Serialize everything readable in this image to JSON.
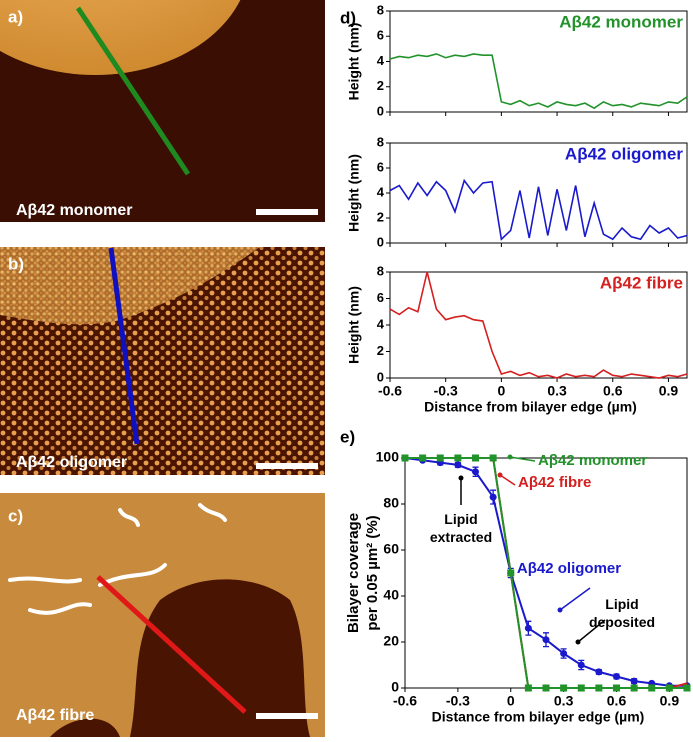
{
  "panels": [
    {
      "label": "a)",
      "caption": "Aβ42 monomer"
    },
    {
      "label": "b)",
      "caption": "Aβ42 oligomer"
    },
    {
      "label": "c)",
      "caption": "Aβ42 fibre"
    }
  ],
  "chart_data": [
    {
      "type": "line",
      "label": "d)",
      "title": "Aβ42 monomer",
      "ylabel": "Height (nm)",
      "x": [
        -0.6,
        -0.55,
        -0.5,
        -0.45,
        -0.4,
        -0.35,
        -0.3,
        -0.25,
        -0.2,
        -0.15,
        -0.1,
        -0.05,
        0,
        0.05,
        0.1,
        0.15,
        0.2,
        0.25,
        0.3,
        0.35,
        0.4,
        0.45,
        0.5,
        0.55,
        0.6,
        0.65,
        0.7,
        0.75,
        0.8,
        0.85,
        0.9,
        0.95,
        1.0
      ],
      "series": [
        {
          "color": "#22922a",
          "values": [
            4.2,
            4.4,
            4.3,
            4.5,
            4.4,
            4.6,
            4.3,
            4.5,
            4.4,
            4.6,
            4.5,
            4.5,
            0.8,
            0.6,
            0.9,
            0.5,
            0.7,
            0.4,
            0.8,
            0.6,
            0.5,
            0.7,
            0.3,
            0.8,
            0.5,
            0.6,
            0.4,
            0.7,
            0.6,
            0.5,
            0.8,
            0.7,
            1.2
          ]
        }
      ],
      "xlim": [
        -0.6,
        1.0
      ],
      "ylim": [
        0,
        8
      ],
      "xticks": [
        -0.6,
        -0.3,
        0,
        0.3,
        0.6,
        0.9
      ],
      "yticks": [
        0,
        2,
        4,
        6,
        8
      ]
    },
    {
      "type": "line",
      "title": "Aβ42 oligomer",
      "ylabel": "Height (nm)",
      "x": [
        -0.6,
        -0.55,
        -0.5,
        -0.45,
        -0.4,
        -0.35,
        -0.3,
        -0.25,
        -0.2,
        -0.15,
        -0.1,
        -0.05,
        0,
        0.05,
        0.1,
        0.15,
        0.2,
        0.25,
        0.3,
        0.35,
        0.4,
        0.45,
        0.5,
        0.55,
        0.6,
        0.65,
        0.7,
        0.75,
        0.8,
        0.85,
        0.9,
        0.95,
        1.0
      ],
      "series": [
        {
          "color": "#1a1acc",
          "values": [
            4.2,
            4.6,
            3.5,
            4.8,
            3.8,
            4.9,
            4.2,
            2.5,
            5.0,
            4.0,
            4.8,
            4.9,
            0.3,
            1.0,
            4.2,
            0.4,
            4.5,
            0.6,
            4.3,
            1.0,
            4.6,
            0.5,
            3.2,
            0.7,
            0.3,
            1.2,
            0.5,
            0.3,
            1.4,
            0.8,
            1.2,
            0.4,
            0.6
          ]
        }
      ],
      "xlim": [
        -0.6,
        1.0
      ],
      "ylim": [
        0,
        8
      ],
      "xticks": [
        -0.6,
        -0.3,
        0,
        0.3,
        0.6,
        0.9
      ],
      "yticks": [
        0,
        2,
        4,
        6,
        8
      ]
    },
    {
      "type": "line",
      "title": "Aβ42 fibre",
      "ylabel": "Height (nm)",
      "xlabel": "Distance from bilayer edge (µm)",
      "x": [
        -0.6,
        -0.55,
        -0.5,
        -0.45,
        -0.4,
        -0.35,
        -0.3,
        -0.25,
        -0.2,
        -0.15,
        -0.1,
        -0.05,
        0,
        0.05,
        0.1,
        0.15,
        0.2,
        0.25,
        0.3,
        0.35,
        0.4,
        0.45,
        0.5,
        0.55,
        0.6,
        0.65,
        0.7,
        0.75,
        0.8,
        0.85,
        0.9,
        0.95,
        1.0
      ],
      "series": [
        {
          "color": "#d42020",
          "values": [
            5.2,
            4.8,
            5.3,
            5.0,
            8.0,
            5.2,
            4.4,
            4.6,
            4.7,
            4.4,
            4.3,
            2.0,
            0.3,
            0.5,
            0.2,
            0.4,
            0.1,
            0.2,
            0.0,
            0.3,
            0.1,
            0.2,
            0.1,
            0.6,
            0.2,
            0.1,
            0.3,
            0.2,
            0.1,
            0.0,
            0.2,
            0.1,
            0.3
          ]
        }
      ],
      "xlim": [
        -0.6,
        1.0
      ],
      "ylim": [
        0,
        8
      ],
      "xticks": [
        -0.6,
        -0.3,
        0,
        0.3,
        0.6,
        0.9
      ],
      "yticks": [
        0,
        2,
        4,
        6,
        8
      ]
    },
    {
      "type": "line",
      "label": "e)",
      "ylabel": [
        "Bilayer coverage",
        "per 0.05 µm² (%)"
      ],
      "xlabel": "Distance from bilayer edge (µm)",
      "x": [
        -0.6,
        -0.5,
        -0.4,
        -0.3,
        -0.2,
        -0.1,
        0,
        0.1,
        0.2,
        0.3,
        0.4,
        0.5,
        0.6,
        0.7,
        0.8,
        0.9,
        1.0
      ],
      "series": [
        {
          "name": "Aβ42 oligomer",
          "color": "#1a1acc",
          "marker": "circle",
          "values": [
            100,
            99,
            98,
            97,
            94,
            83,
            50,
            26,
            21,
            15,
            10,
            7,
            5,
            3,
            2,
            1,
            1
          ],
          "errors": [
            0,
            0,
            1,
            1,
            2,
            3,
            2,
            3,
            3,
            2,
            2,
            1,
            1,
            1,
            0,
            0,
            0
          ]
        },
        {
          "name": "Aβ42 fibre",
          "color": "#d42020",
          "values": [
            100,
            100,
            100,
            100,
            100,
            100,
            50,
            0,
            0,
            0,
            0,
            0,
            0,
            0,
            0,
            0,
            2
          ]
        },
        {
          "name": "Aβ42 monomer",
          "color": "#22922a",
          "marker": "square",
          "values": [
            100,
            100,
            100,
            100,
            100,
            100,
            50,
            0,
            0,
            0,
            0,
            0,
            0,
            0,
            0,
            0,
            0
          ]
        }
      ],
      "annotations": [
        "Lipid extracted",
        "Lipid deposited"
      ],
      "xlim": [
        -0.6,
        1.0
      ],
      "ylim": [
        0,
        100
      ],
      "xticks": [
        -0.6,
        -0.3,
        0,
        0.3,
        0.6,
        0.9
      ],
      "yticks": [
        0,
        20,
        40,
        60,
        80,
        100
      ]
    }
  ]
}
